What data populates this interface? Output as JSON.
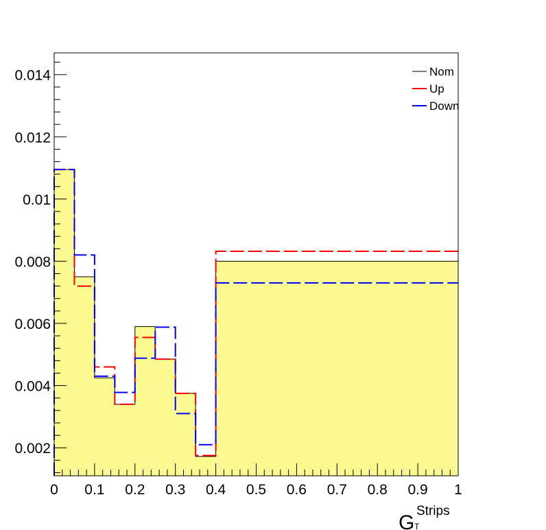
{
  "chart_data": {
    "type": "step",
    "xlabel": {
      "main": "G",
      "superscript": "Strips",
      "subscript": "T"
    },
    "ylabel": "",
    "xlim": [
      0,
      1
    ],
    "ylim": [
      0.0011,
      0.0147
    ],
    "x_ticks": [
      0,
      0.1,
      0.2,
      0.3,
      0.4,
      0.5,
      0.6,
      0.7,
      0.8,
      0.9,
      1
    ],
    "x_tick_labels": [
      "0",
      "0.1",
      "0.2",
      "0.3",
      "0.4",
      "0.5",
      "0.6",
      "0.7",
      "0.8",
      "0.9",
      "1"
    ],
    "y_ticks": [
      0.002,
      0.004,
      0.006,
      0.008,
      0.01,
      0.012,
      0.014
    ],
    "y_tick_labels": [
      "0.002",
      "0.004",
      "0.006",
      "0.008",
      "0.01",
      "0.012",
      "0.014"
    ],
    "bin_edges": [
      0,
      0.05,
      0.1,
      0.15,
      0.2,
      0.25,
      0.3,
      0.35,
      0.4,
      1.0
    ],
    "grid": false,
    "legend_position": "top-right",
    "series": [
      {
        "name": "Nom",
        "color": "#000000",
        "fill": "#fafa90",
        "style": "solid",
        "values": [
          0.01095,
          0.0075,
          0.00425,
          0.0034,
          0.0059,
          0.00485,
          0.00375,
          0.00172,
          0.008
        ]
      },
      {
        "name": "Up",
        "color": "#ff0000",
        "style": "dashed",
        "values": [
          0.01095,
          0.0072,
          0.0046,
          0.0034,
          0.00555,
          0.00485,
          0.00375,
          0.00175,
          0.00832
        ]
      },
      {
        "name": "Down",
        "color": "#0000ff",
        "style": "dashed",
        "values": [
          0.01095,
          0.0082,
          0.0043,
          0.00378,
          0.00488,
          0.00588,
          0.0031,
          0.0021,
          0.0073
        ]
      }
    ]
  }
}
